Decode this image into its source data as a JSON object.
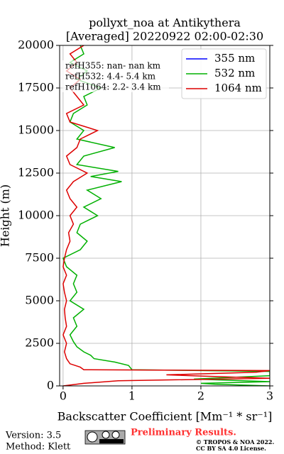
{
  "chart_data": {
    "type": "line",
    "title": "pollyxt_noa at Antikythera",
    "subtitle": "[Averaged] 20220922 02:00-02:30",
    "x_label": "Backscatter Coefficient [Mm⁻¹ * sr⁻¹]",
    "y_label": "Height (m)",
    "xlim": [
      -0.05,
      3
    ],
    "ylim": [
      0,
      20000
    ],
    "xticks": [
      0,
      1,
      2,
      3
    ],
    "yticks": [
      0,
      2500,
      5000,
      7500,
      10000,
      12500,
      15000,
      17500,
      20000
    ],
    "grid": true,
    "legend": "upper right",
    "annotations": [
      "refH355:  nan- nan km",
      "refH532:  4.4- 5.4 km",
      "refH1064:  2.2- 3.4 km"
    ],
    "series": [
      {
        "name": "355 nm",
        "color": "#0000ff",
        "x": [],
        "y": []
      },
      {
        "name": "532 nm",
        "color": "#00b000",
        "x": [
          3.0,
          2.2,
          2.0,
          3.0,
          1.9,
          3.0,
          3.0,
          1.0,
          0.95,
          0.75,
          0.45,
          0.4,
          0.3,
          0.2,
          0.15,
          0.1,
          0.2,
          0.15,
          0.3,
          0.1,
          0.2,
          0.15,
          0.2,
          0.05,
          0.0,
          0.25,
          0.35,
          0.2,
          0.25,
          0.5,
          0.3,
          0.55,
          0.35,
          0.85,
          0.4,
          0.8,
          0.2,
          0.3,
          0.75,
          0.2,
          0.3,
          0.1,
          0.15,
          0.35,
          0.3,
          0.55,
          0.2,
          0.35,
          0.1,
          0.3,
          0.25
        ],
        "y": [
          0,
          100,
          150,
          250,
          400,
          600,
          850,
          950,
          1200,
          1400,
          1600,
          1800,
          2000,
          2300,
          2600,
          3000,
          3500,
          4000,
          4500,
          5000,
          5500,
          6000,
          6500,
          7000,
          7500,
          8000,
          8500,
          9000,
          9500,
          10000,
          10500,
          11000,
          11500,
          12000,
          12300,
          12600,
          13000,
          13500,
          14000,
          14500,
          15000,
          15500,
          16000,
          16500,
          17000,
          17500,
          18000,
          18500,
          19000,
          19500,
          20000
        ]
      },
      {
        "name": "1064 nm",
        "color": "#dd0000",
        "x": [
          0.0,
          0.3,
          0.8,
          3.0,
          2.2,
          1.5,
          2.8,
          3.0,
          0.3,
          0.25,
          0.1,
          0.05,
          0.02,
          0.05,
          0.0,
          0.05,
          0.03,
          0.02,
          0.05,
          0.02,
          0.0,
          0.05,
          0.0,
          0.02,
          0.05,
          0.1,
          0.08,
          0.15,
          0.1,
          0.2,
          0.1,
          0.05,
          0.15,
          0.35,
          0.1,
          0.05,
          0.2,
          0.25,
          0.5,
          0.1,
          0.05,
          0.3,
          0.2,
          0.1,
          0.25,
          0.05,
          0.2,
          0.1,
          0.3
        ],
        "y": [
          0,
          150,
          300,
          450,
          550,
          650,
          800,
          900,
          950,
          1100,
          1300,
          1600,
          2000,
          2500,
          3000,
          3500,
          4000,
          4500,
          5000,
          5500,
          6000,
          6500,
          7000,
          7500,
          8000,
          8500,
          9000,
          9500,
          10000,
          10500,
          11000,
          11500,
          12000,
          12500,
          13000,
          13500,
          14000,
          14500,
          15000,
          15500,
          16000,
          16500,
          17000,
          17500,
          18000,
          18500,
          19000,
          19500,
          20000
        ]
      }
    ]
  },
  "footer": {
    "version": "Version: 3.5",
    "method": "Method: Klett",
    "preliminary": "Preliminary Results.",
    "copyright": "© TROPOS & NOA 2022.",
    "license": "CC BY SA 4.0 License."
  }
}
